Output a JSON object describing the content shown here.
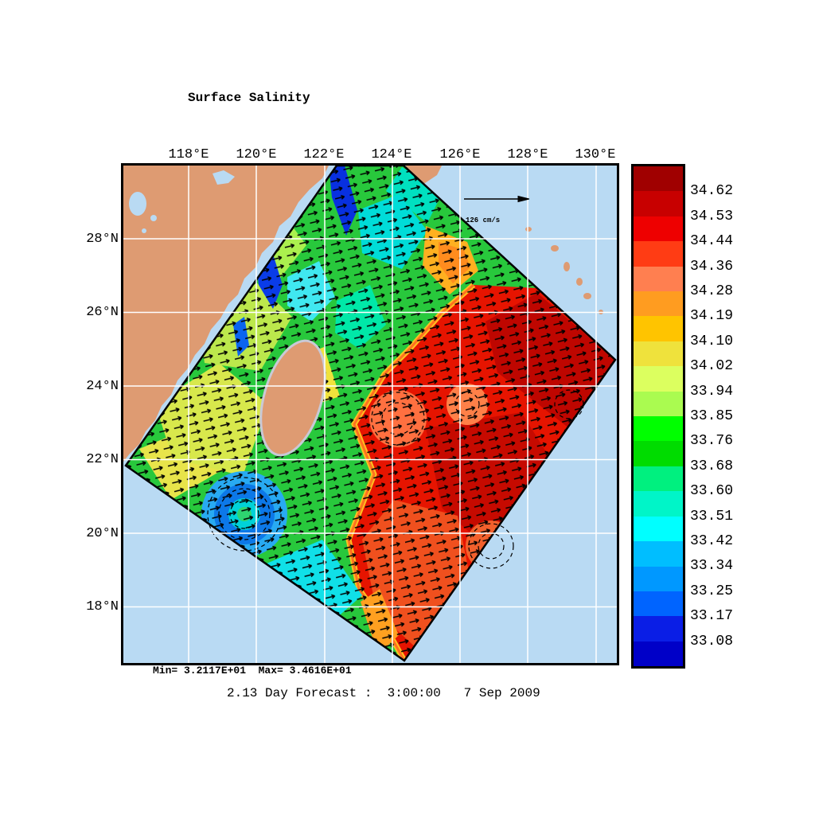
{
  "title": "Surface Salinity",
  "axes": {
    "lon_labels": [
      "118°E",
      "120°E",
      "122°E",
      "124°E",
      "126°E",
      "128°E",
      "130°E"
    ],
    "lat_labels": [
      "28°N",
      "26°N",
      "24°N",
      "22°N",
      "20°N",
      "18°N"
    ]
  },
  "vector_scale": {
    "label": "126 cm/s"
  },
  "colorbar": {
    "labels": [
      "34.62",
      "34.53",
      "34.44",
      "34.36",
      "34.28",
      "34.19",
      "34.10",
      "34.02",
      "33.94",
      "33.85",
      "33.76",
      "33.68",
      "33.60",
      "33.51",
      "33.42",
      "33.34",
      "33.25",
      "33.17",
      "33.08"
    ],
    "colors": [
      "#A00000",
      "#C80000",
      "#EE0000",
      "#FF3C14",
      "#FF7F50",
      "#FF9C20",
      "#FFC400",
      "#EFE23C",
      "#DCFF5F",
      "#AAFB50",
      "#00FF00",
      "#00DC00",
      "#00F07F",
      "#00F5C8",
      "#00FFFF",
      "#00BEFF",
      "#0098FF",
      "#0064FF",
      "#0A1EE6",
      "#0000C8"
    ]
  },
  "footer": {
    "minmax": "Min= 3.2117E+01  Max= 3.4616E+01",
    "caption": "2.13 Day Forecast :  3:00:00   7 Sep 2009"
  },
  "palette": {
    "ocean": "#B9DAF3",
    "land": "#DE9B72",
    "gridlines": "#FFFFFF",
    "vectors": "#000000",
    "coast_fringe": "#C9C9D6"
  },
  "chart_data": {
    "type": "heatmap",
    "title": "Surface Salinity",
    "variable": "sea surface salinity with surface current vectors",
    "x_axis": {
      "ticks": [
        "118E",
        "120E",
        "122E",
        "124E",
        "126E",
        "128E",
        "130E"
      ],
      "units": "degrees East"
    },
    "y_axis": {
      "ticks": [
        "28N",
        "26N",
        "24N",
        "22N",
        "20N",
        "18N"
      ],
      "units": "degrees North"
    },
    "colorbar_levels": [
      34.62,
      34.53,
      34.44,
      34.36,
      34.28,
      34.19,
      34.1,
      34.02,
      33.94,
      33.85,
      33.76,
      33.68,
      33.6,
      33.51,
      33.42,
      33.34,
      33.25,
      33.17,
      33.08
    ],
    "colorbar_colors": [
      "#A00000",
      "#C80000",
      "#EE0000",
      "#FF3C14",
      "#FF7F50",
      "#FF9C20",
      "#FFC400",
      "#EFE23C",
      "#DCFF5F",
      "#AAFB50",
      "#00FF00",
      "#00DC00",
      "#00F07F",
      "#00F5C8",
      "#00FFFF",
      "#00BEFF",
      "#0098FF",
      "#0064FF",
      "#0A1EE6",
      "#0000C8"
    ],
    "data_min": 32.117,
    "data_max": 34.616,
    "vector_reference": "126 cm/s",
    "forecast_caption": "2.13 Day Forecast :  3:00:00   7 Sep 2009",
    "legend_position": "right",
    "grid": true
  }
}
